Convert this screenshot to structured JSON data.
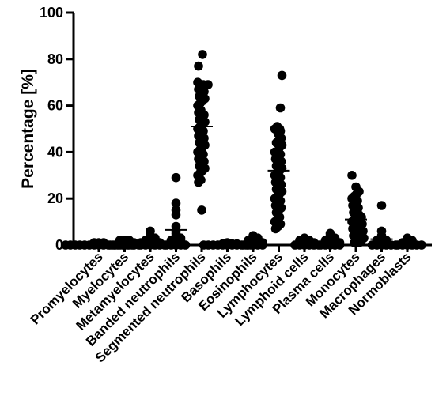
{
  "chart_data": {
    "type": "scatter",
    "title": "",
    "xlabel": "",
    "ylabel": "Percentage [%]",
    "ylim": [
      0,
      100
    ],
    "yticks": [
      "0",
      "20",
      "40",
      "60",
      "80",
      "100"
    ],
    "grid": false,
    "legend": "none",
    "point_color": "#000000",
    "categories": [
      "Promyelocytes",
      "Myelocytes",
      "Metamyelocytes",
      "Banded neutrophils",
      "Segmented neutrophils",
      "Basophils",
      "Eosinophils",
      "Lymphocytes",
      "Lymphoid cells",
      "Plasma cells",
      "Monocytes",
      "Macrophages",
      "Normoblasts"
    ],
    "means": [
      0.2,
      0.6,
      1.2,
      6.5,
      51,
      0.3,
      1.3,
      32,
      0.8,
      1.2,
      11,
      2.5,
      0.6
    ],
    "series": [
      {
        "values": [
          [
            0,
            0,
            0,
            0,
            0,
            0,
            0,
            0,
            0,
            0,
            0,
            0,
            0,
            0,
            0,
            0.5,
            0.5,
            0.5,
            1,
            1,
            1
          ],
          [
            0,
            0,
            0,
            0,
            0,
            0,
            0,
            0.5,
            0.5,
            0.5,
            0.5,
            1,
            1,
            1,
            1,
            1.5,
            1.5,
            2,
            2,
            2
          ],
          [
            0,
            0,
            0,
            0,
            0,
            0,
            0.5,
            0.5,
            0.5,
            1,
            1,
            1,
            1,
            1,
            1.5,
            1.5,
            2,
            2,
            2,
            3,
            3,
            4,
            6
          ],
          [
            0,
            0,
            0,
            0,
            0,
            0.5,
            1,
            1,
            1,
            2,
            2,
            2,
            3,
            3,
            4,
            5,
            6,
            8,
            13,
            15,
            18,
            29
          ],
          [
            82,
            77,
            70,
            69,
            69,
            68,
            67,
            66,
            65,
            64,
            63,
            62,
            61,
            60,
            58,
            57,
            56,
            55,
            54,
            53,
            52,
            51,
            50,
            49,
            48,
            47,
            46,
            45,
            44,
            43,
            42,
            41,
            40,
            39,
            38,
            37,
            36,
            35,
            34,
            33,
            32,
            31,
            30,
            28,
            27,
            15
          ],
          [
            0,
            0,
            0,
            0,
            0,
            0,
            0,
            0,
            0,
            0,
            0,
            0.5,
            0.5,
            0.5,
            0.5,
            1
          ],
          [
            0,
            0,
            0,
            0,
            0,
            0.5,
            0.5,
            1,
            1,
            1,
            1,
            1.5,
            2,
            2,
            2,
            3,
            3,
            4
          ],
          [
            73,
            59,
            51,
            50,
            50,
            49,
            48,
            46,
            45,
            44,
            43,
            42,
            40,
            39,
            38,
            37,
            36,
            35,
            34,
            33,
            32,
            31,
            30,
            29,
            28,
            27,
            26,
            25,
            24,
            23,
            22,
            21,
            20,
            19,
            18,
            17,
            16,
            15,
            14,
            12,
            10,
            9,
            8,
            7
          ],
          [
            0,
            0,
            0,
            0,
            0,
            0,
            0.5,
            0.5,
            0.5,
            1,
            1,
            1,
            1,
            1.5,
            1.5,
            2,
            2,
            2,
            3
          ],
          [
            0,
            0,
            0,
            0,
            0,
            0.5,
            0.5,
            1,
            1,
            1,
            1,
            1.5,
            1.5,
            2,
            2,
            2,
            3,
            3,
            4,
            5
          ],
          [
            30,
            25,
            23,
            22,
            21,
            20,
            19,
            18,
            17,
            16,
            15,
            14,
            13,
            12,
            12,
            11,
            10,
            10,
            9,
            9,
            8,
            8,
            7,
            7,
            6,
            6,
            5,
            5,
            4,
            4,
            3,
            3,
            2,
            2,
            1,
            1
          ],
          [
            0,
            0,
            0,
            0,
            0,
            0,
            0.5,
            0.5,
            1,
            1,
            1,
            2,
            2,
            2,
            3,
            4,
            6,
            17
          ],
          [
            0,
            0,
            0,
            0,
            0,
            0,
            0.5,
            0.5,
            1,
            1,
            1,
            1.5,
            2,
            2,
            3
          ]
        ]
      }
    ]
  }
}
